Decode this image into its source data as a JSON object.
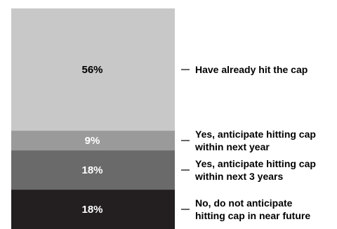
{
  "chart_data": {
    "type": "bar",
    "stacked": true,
    "orientation": "vertical",
    "series": [
      {
        "name": "Have already hit the cap",
        "value": 56,
        "display": "56%",
        "color": "#c8c8c8",
        "label_color": "#000000",
        "label_lines": [
          "Have already hit the cap"
        ]
      },
      {
        "name": "Yes, anticipate hitting cap within next year",
        "value": 9,
        "display": "9%",
        "color": "#9a9a9a",
        "label_color": "#ffffff",
        "label_lines": [
          "Yes, anticipate hitting cap",
          "within next year"
        ]
      },
      {
        "name": "Yes, anticipate hitting cap within next 3 years",
        "value": 18,
        "display": "18%",
        "color": "#6a6a6a",
        "label_color": "#ffffff",
        "label_lines": [
          "Yes, anticipate hitting cap",
          "within next 3 years"
        ]
      },
      {
        "name": "No, do not anticipate hitting cap in near future",
        "value": 18,
        "display": "18%",
        "color": "#231f20",
        "label_color": "#ffffff",
        "label_lines": [
          "No, do not anticipate",
          "hitting cap in near future"
        ]
      }
    ],
    "legend": "right"
  }
}
